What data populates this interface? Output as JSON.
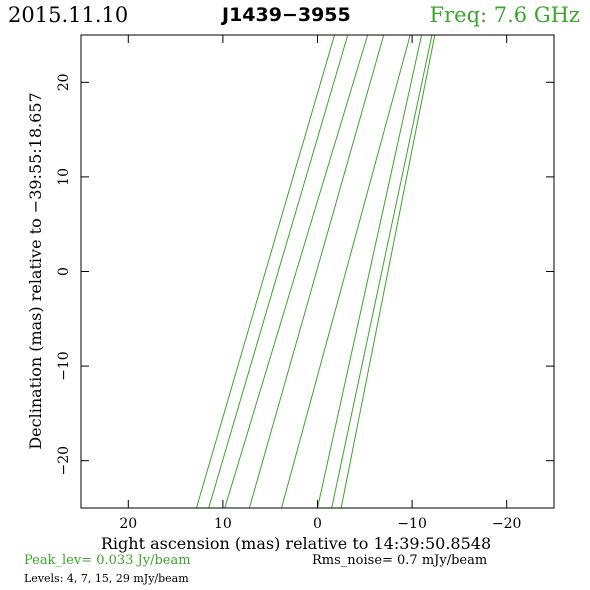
{
  "header": {
    "date": "2015.11.10",
    "source": "J1439−3955",
    "freq": "Freq: 7.6 GHz"
  },
  "colors": {
    "accent": "#3aa62a",
    "contour": "#3aa62a",
    "axis": "#000000"
  },
  "footer": {
    "peak": "Peak_lev=  0.033 Jy/beam",
    "rms": "Rms_noise=   0.7 mJy/beam",
    "levels": "Levels:   4,   7,  15,  29 mJy/beam"
  },
  "chart_data": {
    "type": "contour",
    "xlabel": "Right ascension (mas) relative to 14:39:50.8548",
    "ylabel": "Declination (mas) relative to −39:55:18.657",
    "xlim": [
      25,
      -25
    ],
    "ylim": [
      -25,
      25
    ],
    "xticks": [
      20,
      10,
      0,
      -10,
      -20
    ],
    "xtick_labels": [
      "20",
      "10",
      "0",
      "−10",
      "−20"
    ],
    "yticks": [
      20,
      10,
      0,
      -10,
      -20
    ],
    "ytick_labels": [
      "20",
      "10",
      "0",
      "−10",
      "−20"
    ],
    "contour_lines": [
      {
        "x": [
          12.8,
          -1.8
        ]
      },
      {
        "x": [
          11.5,
          -3.2
        ]
      },
      {
        "x": [
          9.8,
          -5.3
        ]
      },
      {
        "x": [
          7.2,
          -7.0
        ]
      },
      {
        "x": [
          3.8,
          -9.8
        ]
      },
      {
        "x": [
          0.0,
          -11.0
        ]
      },
      {
        "x": [
          -1.5,
          -12.1
        ]
      },
      {
        "x": [
          -2.5,
          -12.4
        ]
      }
    ],
    "contour_y": [
      -25,
      25
    ]
  }
}
